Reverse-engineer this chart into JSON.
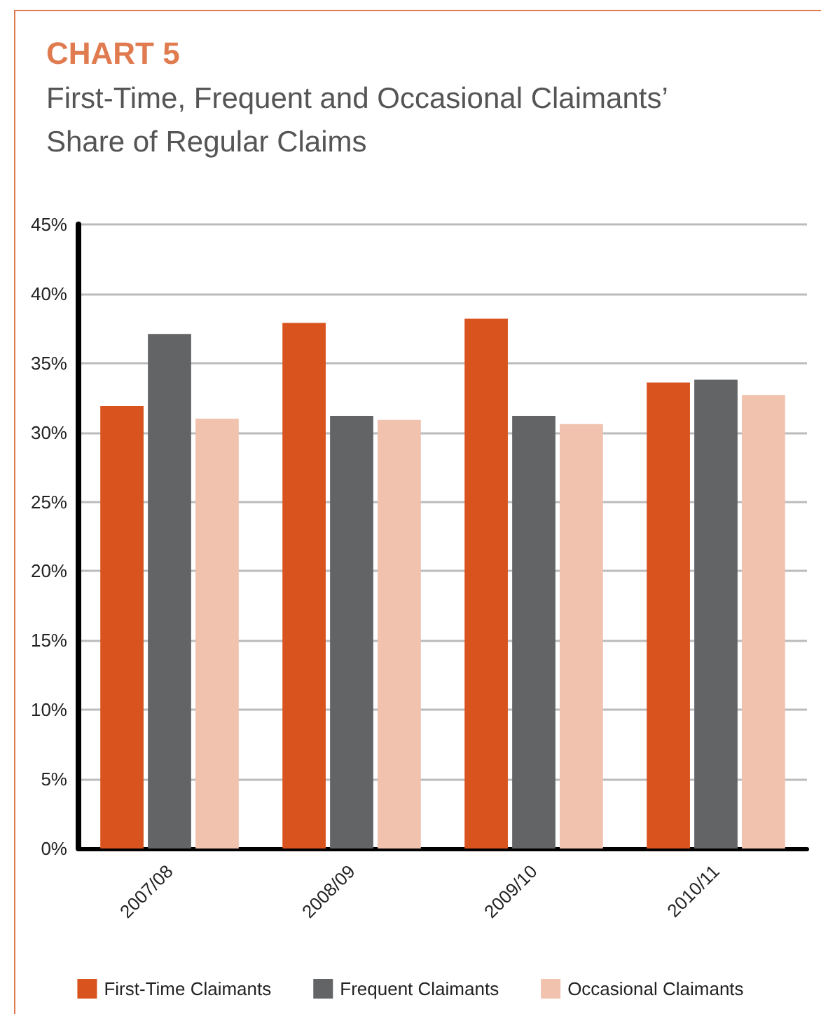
{
  "chart_data": {
    "type": "bar",
    "title": "CHART 5",
    "subtitle": "First-Time, Frequent and Occasional Claimants’\nShare of Regular Claims",
    "categories": [
      "2007/08",
      "2008/09",
      "2009/10",
      "2010/11"
    ],
    "series": [
      {
        "name": "First-Time Claimants",
        "color": "#d9531e",
        "values": [
          31.9,
          37.9,
          38.2,
          33.6
        ]
      },
      {
        "name": "Frequent Claimants",
        "color": "#636466",
        "values": [
          37.1,
          31.2,
          31.2,
          33.8
        ]
      },
      {
        "name": "Occasional Claimants",
        "color": "#f1c2ae",
        "values": [
          31.0,
          30.9,
          30.6,
          32.7
        ]
      }
    ],
    "ylim": [
      0,
      45
    ],
    "yticks": [
      {
        "value": 0,
        "label": "0%"
      },
      {
        "value": 5,
        "label": "5%"
      },
      {
        "value": 10,
        "label": "10%"
      },
      {
        "value": 15,
        "label": "15%"
      },
      {
        "value": 20,
        "label": "20%"
      },
      {
        "value": 25,
        "label": "25%"
      },
      {
        "value": 30,
        "label": "30%"
      },
      {
        "value": 35,
        "label": "35%"
      },
      {
        "value": 40,
        "label": "40%"
      },
      {
        "value": 45,
        "label": "45%"
      }
    ],
    "grid": "y",
    "legend": "bottom"
  }
}
